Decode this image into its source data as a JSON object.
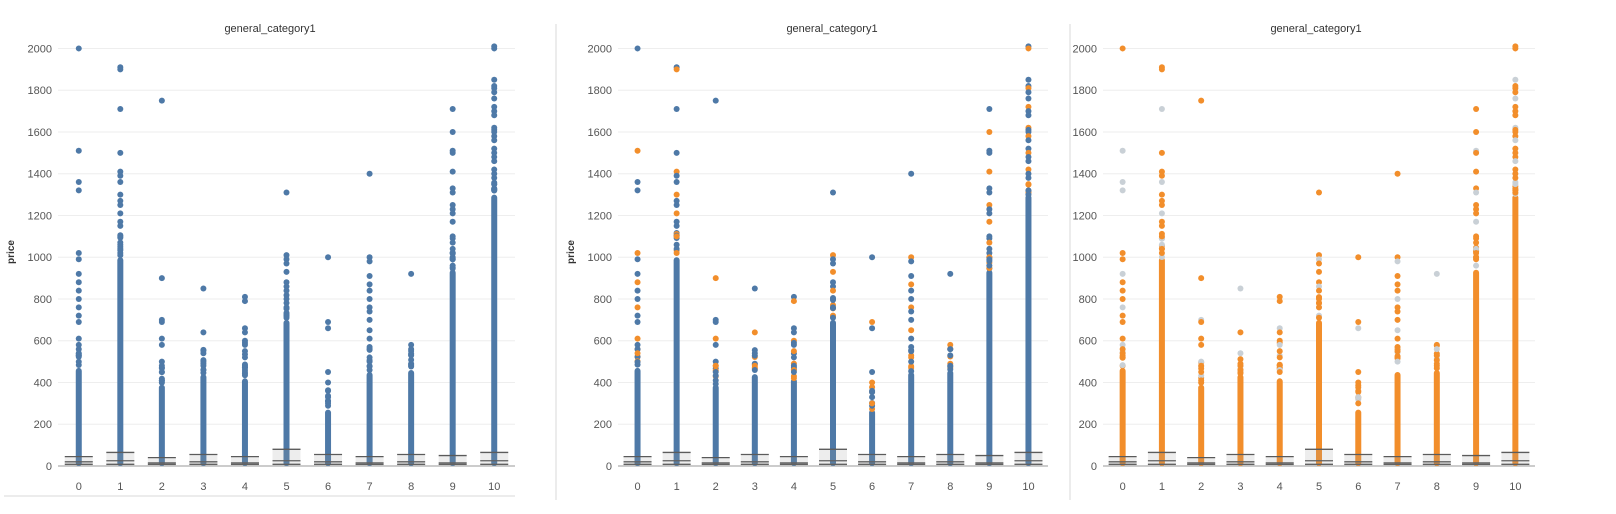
{
  "chart_data": [
    {
      "type": "scatter",
      "title": "general_category1",
      "xlabel": "",
      "ylabel": "price",
      "ylim": [
        0,
        2050
      ],
      "yticks": [
        0,
        200,
        400,
        600,
        800,
        1000,
        1200,
        1400,
        1600,
        1800,
        2000
      ],
      "categories": [
        "0",
        "1",
        "2",
        "3",
        "4",
        "5",
        "6",
        "7",
        "8",
        "9",
        "10"
      ],
      "grid": true,
      "dense_max": [
        470,
        1000,
        390,
        440,
        420,
        700,
        270,
        450,
        460,
        940,
        1300
      ],
      "outliers": [
        [
          2000,
          1510,
          1360,
          1320,
          1020,
          990,
          920,
          880,
          840,
          800,
          760,
          720,
          690,
          610,
          580,
          560,
          540
        ],
        [
          1910,
          1900,
          1710,
          1500,
          1410,
          1390,
          1360,
          1300,
          1270,
          1250,
          1210,
          1170,
          1150,
          1100,
          1060,
          1040,
          1020
        ],
        [
          1750,
          900,
          700,
          690,
          610,
          580,
          500,
          480,
          450,
          410
        ],
        [
          850,
          640,
          540,
          490,
          480,
          460
        ],
        [
          810,
          790,
          660,
          640,
          600,
          590,
          580,
          550,
          520,
          480,
          460,
          450
        ],
        [
          1310,
          1010,
          990,
          970,
          930,
          880,
          860,
          840,
          800,
          760,
          720,
          710
        ],
        [
          1000,
          690,
          660,
          450,
          400,
          360,
          330,
          300
        ],
        [
          1400,
          1000,
          980,
          910,
          870,
          840,
          800,
          760,
          740,
          700,
          650,
          610,
          570,
          520,
          500
        ],
        [
          920,
          580,
          560,
          530,
          490,
          480
        ],
        [
          1710,
          1600,
          1510,
          1500,
          1410,
          1330,
          1310,
          1250,
          1230,
          1210,
          1170,
          1100,
          1090,
          1070,
          1040,
          1020,
          1000,
          990,
          960
        ],
        [
          2010,
          2000,
          1850,
          1820,
          1810,
          1790,
          1760,
          1720,
          1700,
          1680,
          1620,
          1610,
          1600,
          1580,
          1560,
          1520,
          1500,
          1480,
          1460,
          1420,
          1400,
          1380,
          1350,
          1320
        ]
      ],
      "medians": [
        20,
        25,
        15,
        20,
        15,
        25,
        20,
        15,
        20,
        15,
        25
      ],
      "upper_marks": [
        45,
        65,
        40,
        55,
        45,
        80,
        55,
        45,
        55,
        50,
        65
      ],
      "colors": {
        "default": "#4e79a7",
        "highlight": "#f28e2b",
        "muted": "#c9d0d6"
      },
      "color_mode": "blue"
    },
    {
      "type": "scatter",
      "title": "general_category1",
      "xlabel": "",
      "ylabel": "price",
      "ylim": [
        0,
        2050
      ],
      "yticks": [
        0,
        200,
        400,
        600,
        800,
        1000,
        1200,
        1400,
        1600,
        1800,
        2000
      ],
      "categories": [
        "0",
        "1",
        "2",
        "3",
        "4",
        "5",
        "6",
        "7",
        "8",
        "9",
        "10"
      ],
      "grid": true,
      "color_mode": "mixed"
    },
    {
      "type": "scatter",
      "title": "general_category1",
      "xlabel": "",
      "ylabel": "",
      "ylim": [
        0,
        2050
      ],
      "yticks": [
        0,
        200,
        400,
        600,
        800,
        1000,
        1200,
        1400,
        1600,
        1800,
        2000
      ],
      "categories": [
        "0",
        "1",
        "2",
        "3",
        "4",
        "5",
        "6",
        "7",
        "8",
        "9",
        "10"
      ],
      "grid": true,
      "color_mode": "orange"
    }
  ]
}
